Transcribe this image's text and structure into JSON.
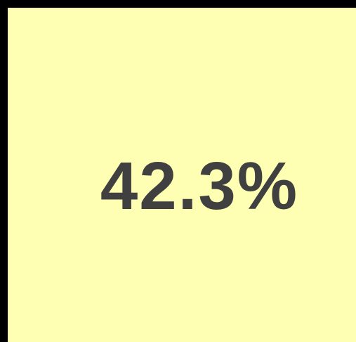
{
  "tile": {
    "value": "42.3%"
  }
}
